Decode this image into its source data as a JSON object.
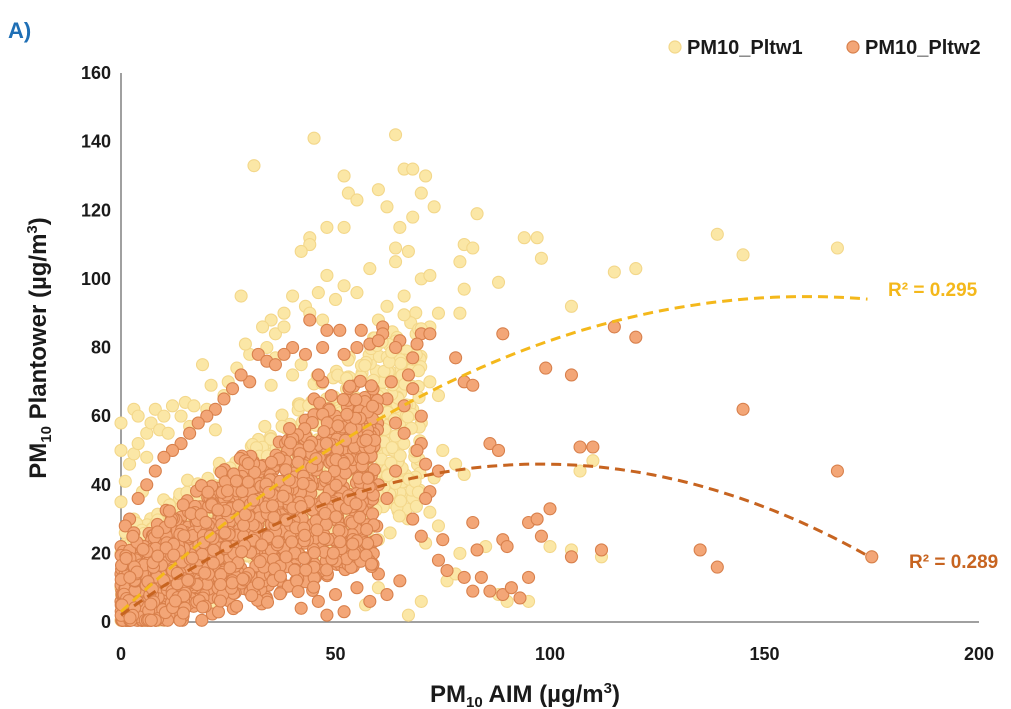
{
  "panel_label": "A)",
  "colors": {
    "series1_fill": "#fbe7a6",
    "series1_stroke": "#f3d78a",
    "series2_fill": "#f3a677",
    "series2_stroke": "#d8804c",
    "trend1": "#f4b81b",
    "trend2": "#c76420",
    "axis": "#808080"
  },
  "chart_data": {
    "type": "scatter",
    "xlabel": {
      "pre": "PM",
      "sub": "10",
      "post": " AIM (µg/m",
      "sup": "3",
      "end": ")"
    },
    "ylabel": {
      "pre": "PM",
      "sub": "10",
      "post": " Plantower (µg/m",
      "sup": "3",
      "end": ")"
    },
    "xlim": [
      0,
      200
    ],
    "ylim": [
      0,
      160
    ],
    "xticks": [
      "0",
      "50",
      "100",
      "150",
      "200"
    ],
    "yticks": [
      "0",
      "20",
      "40",
      "60",
      "80",
      "100",
      "120",
      "140",
      "160"
    ],
    "legend_position": "top-right",
    "series": [
      {
        "name": "PM10_Pltw1",
        "trend": {
          "type": "polynomial-2",
          "r2_label": "R² = 0.295",
          "coef": [
            3,
            1.15,
            -0.0036
          ],
          "x_range": [
            0,
            175
          ]
        },
        "points": [
          [
            64,
            142
          ],
          [
            45,
            141
          ],
          [
            66,
            132
          ],
          [
            68,
            132
          ],
          [
            71,
            130
          ],
          [
            31,
            133
          ],
          [
            52,
            130
          ],
          [
            53,
            125
          ],
          [
            60,
            126
          ],
          [
            62,
            121
          ],
          [
            70,
            125
          ],
          [
            73,
            121
          ],
          [
            48,
            115
          ],
          [
            52,
            115
          ],
          [
            55,
            123
          ],
          [
            65,
            115
          ],
          [
            68,
            118
          ],
          [
            83,
            119
          ],
          [
            44,
            112
          ],
          [
            44,
            110
          ],
          [
            42,
            108
          ],
          [
            64,
            109
          ],
          [
            67,
            108
          ],
          [
            80,
            110
          ],
          [
            82,
            109
          ],
          [
            94,
            112
          ],
          [
            97,
            112
          ],
          [
            98,
            106
          ],
          [
            139,
            113
          ],
          [
            167,
            109
          ],
          [
            145,
            107
          ],
          [
            115,
            102
          ],
          [
            120,
            103
          ],
          [
            105,
            92
          ],
          [
            48,
            101
          ],
          [
            52,
            98
          ],
          [
            55,
            96
          ],
          [
            58,
            103
          ],
          [
            62,
            92
          ],
          [
            64,
            105
          ],
          [
            66,
            95
          ],
          [
            70,
            100
          ],
          [
            72,
            101
          ],
          [
            79,
            105
          ],
          [
            80,
            97
          ],
          [
            88,
            99
          ],
          [
            28,
            95
          ],
          [
            40,
            95
          ],
          [
            43,
            92
          ],
          [
            46,
            96
          ],
          [
            50,
            94
          ],
          [
            60,
            88
          ],
          [
            38,
            90
          ],
          [
            35,
            88
          ],
          [
            33,
            86
          ],
          [
            72,
            86
          ],
          [
            74,
            90
          ],
          [
            79,
            90
          ],
          [
            3,
            62
          ],
          [
            4,
            60
          ],
          [
            6,
            55
          ],
          [
            7,
            58
          ],
          [
            8,
            62
          ],
          [
            9,
            56
          ],
          [
            10,
            60
          ],
          [
            11,
            55
          ],
          [
            12,
            63
          ],
          [
            14,
            60
          ],
          [
            15,
            64
          ],
          [
            16,
            57
          ],
          [
            17,
            63
          ],
          [
            18,
            58
          ],
          [
            20,
            62
          ],
          [
            22,
            56
          ],
          [
            19,
            75
          ],
          [
            25,
            70
          ],
          [
            27,
            74
          ],
          [
            30,
            78
          ],
          [
            34,
            80
          ],
          [
            36,
            77
          ],
          [
            29,
            81
          ],
          [
            24,
            66
          ],
          [
            21,
            69
          ],
          [
            35,
            69
          ],
          [
            40,
            72
          ],
          [
            42,
            75
          ],
          [
            2,
            46
          ],
          [
            3,
            49
          ],
          [
            1,
            41
          ],
          [
            0,
            50
          ],
          [
            1,
            26
          ],
          [
            0,
            20
          ],
          [
            0,
            10
          ],
          [
            2,
            5
          ],
          [
            0,
            58
          ],
          [
            4,
            52
          ],
          [
            6,
            48
          ],
          [
            5,
            38
          ],
          [
            3,
            30
          ],
          [
            0,
            35
          ],
          [
            36,
            84
          ],
          [
            38,
            86
          ],
          [
            44,
            90
          ],
          [
            47,
            88
          ],
          [
            72,
            70
          ],
          [
            74,
            66
          ],
          [
            70,
            58
          ],
          [
            75,
            50
          ],
          [
            73,
            42
          ],
          [
            78,
            46
          ],
          [
            80,
            43
          ],
          [
            72,
            32
          ],
          [
            79,
            20
          ],
          [
            85,
            22
          ],
          [
            88,
            8
          ],
          [
            90,
            6
          ],
          [
            95,
            6
          ],
          [
            100,
            22
          ],
          [
            105,
            21
          ],
          [
            112,
            19
          ],
          [
            107,
            44
          ],
          [
            110,
            47
          ],
          [
            175,
            19
          ],
          [
            74,
            28
          ],
          [
            71,
            23
          ],
          [
            76,
            12
          ],
          [
            78,
            14
          ],
          [
            70,
            6
          ],
          [
            67,
            2
          ],
          [
            60,
            10
          ],
          [
            57,
            5
          ],
          [
            62,
            55
          ],
          [
            59,
            62
          ],
          [
            61,
            66
          ],
          [
            63,
            60
          ],
          [
            65,
            58
          ],
          [
            68,
            62
          ],
          [
            54,
            44
          ],
          [
            56,
            38
          ],
          [
            58,
            30
          ],
          [
            60,
            24
          ]
        ],
        "cluster": {
          "n": 1100,
          "x_max": 70,
          "seed": 7
        }
      },
      {
        "name": "PM10_Pltw2",
        "trend": {
          "type": "polynomial-2",
          "r2_label": "R² = 0.289",
          "coef": [
            2,
            0.9,
            -0.0046
          ],
          "x_range": [
            0,
            175
          ]
        },
        "points": [
          [
            44,
            88
          ],
          [
            48,
            85
          ],
          [
            51,
            85
          ],
          [
            56,
            85
          ],
          [
            61,
            86
          ],
          [
            61,
            84
          ],
          [
            65,
            82
          ],
          [
            70,
            84
          ],
          [
            72,
            84
          ],
          [
            89,
            84
          ],
          [
            115,
            86
          ],
          [
            120,
            83
          ],
          [
            40,
            80
          ],
          [
            43,
            78
          ],
          [
            47,
            80
          ],
          [
            52,
            78
          ],
          [
            55,
            80
          ],
          [
            58,
            81
          ],
          [
            60,
            82
          ],
          [
            64,
            80
          ],
          [
            68,
            77
          ],
          [
            69,
            81
          ],
          [
            78,
            77
          ],
          [
            80,
            70
          ],
          [
            82,
            69
          ],
          [
            99,
            74
          ],
          [
            105,
            72
          ],
          [
            145,
            62
          ],
          [
            32,
            78
          ],
          [
            34,
            76
          ],
          [
            36,
            75
          ],
          [
            38,
            78
          ],
          [
            30,
            70
          ],
          [
            28,
            72
          ],
          [
            26,
            68
          ],
          [
            24,
            65
          ],
          [
            22,
            62
          ],
          [
            20,
            60
          ],
          [
            18,
            58
          ],
          [
            16,
            55
          ],
          [
            14,
            52
          ],
          [
            12,
            50
          ],
          [
            10,
            48
          ],
          [
            8,
            44
          ],
          [
            6,
            40
          ],
          [
            4,
            36
          ],
          [
            2,
            30
          ],
          [
            1,
            28
          ],
          [
            0,
            22
          ],
          [
            0,
            14
          ],
          [
            0,
            6
          ],
          [
            1,
            2
          ],
          [
            3,
            1
          ],
          [
            4,
            10
          ],
          [
            2,
            18
          ],
          [
            3,
            26
          ],
          [
            5,
            20
          ],
          [
            6,
            12
          ],
          [
            7,
            6
          ],
          [
            8,
            2
          ],
          [
            67,
            72
          ],
          [
            68,
            68
          ],
          [
            70,
            60
          ],
          [
            66,
            55
          ],
          [
            70,
            52
          ],
          [
            86,
            52
          ],
          [
            88,
            50
          ],
          [
            107,
            51
          ],
          [
            110,
            51
          ],
          [
            167,
            44
          ],
          [
            74,
            44
          ],
          [
            72,
            38
          ],
          [
            71,
            36
          ],
          [
            68,
            30
          ],
          [
            70,
            25
          ],
          [
            75,
            24
          ],
          [
            82,
            29
          ],
          [
            83,
            21
          ],
          [
            89,
            24
          ],
          [
            90,
            22
          ],
          [
            95,
            29
          ],
          [
            97,
            30
          ],
          [
            100,
            33
          ],
          [
            98,
            25
          ],
          [
            105,
            19
          ],
          [
            112,
            21
          ],
          [
            135,
            21
          ],
          [
            139,
            16
          ],
          [
            175,
            19
          ],
          [
            74,
            18
          ],
          [
            76,
            15
          ],
          [
            80,
            13
          ],
          [
            82,
            9
          ],
          [
            84,
            13
          ],
          [
            86,
            9
          ],
          [
            89,
            8
          ],
          [
            91,
            10
          ],
          [
            93,
            7
          ],
          [
            95,
            13
          ],
          [
            65,
            12
          ],
          [
            62,
            8
          ],
          [
            60,
            14
          ],
          [
            58,
            6
          ],
          [
            55,
            10
          ],
          [
            52,
            3
          ],
          [
            50,
            8
          ],
          [
            48,
            2
          ],
          [
            46,
            6
          ],
          [
            44,
            12
          ],
          [
            42,
            4
          ],
          [
            60,
            40
          ],
          [
            62,
            36
          ],
          [
            64,
            44
          ],
          [
            58,
            48
          ],
          [
            56,
            52
          ],
          [
            54,
            56
          ],
          [
            52,
            50
          ],
          [
            50,
            60
          ],
          [
            49,
            66
          ],
          [
            47,
            70
          ],
          [
            46,
            72
          ],
          [
            45,
            65
          ],
          [
            62,
            65
          ],
          [
            63,
            70
          ],
          [
            64,
            58
          ],
          [
            66,
            63
          ],
          [
            69,
            50
          ],
          [
            71,
            46
          ]
        ],
        "cluster": {
          "n": 1300,
          "x_max": 60,
          "seed": 13
        }
      }
    ]
  }
}
